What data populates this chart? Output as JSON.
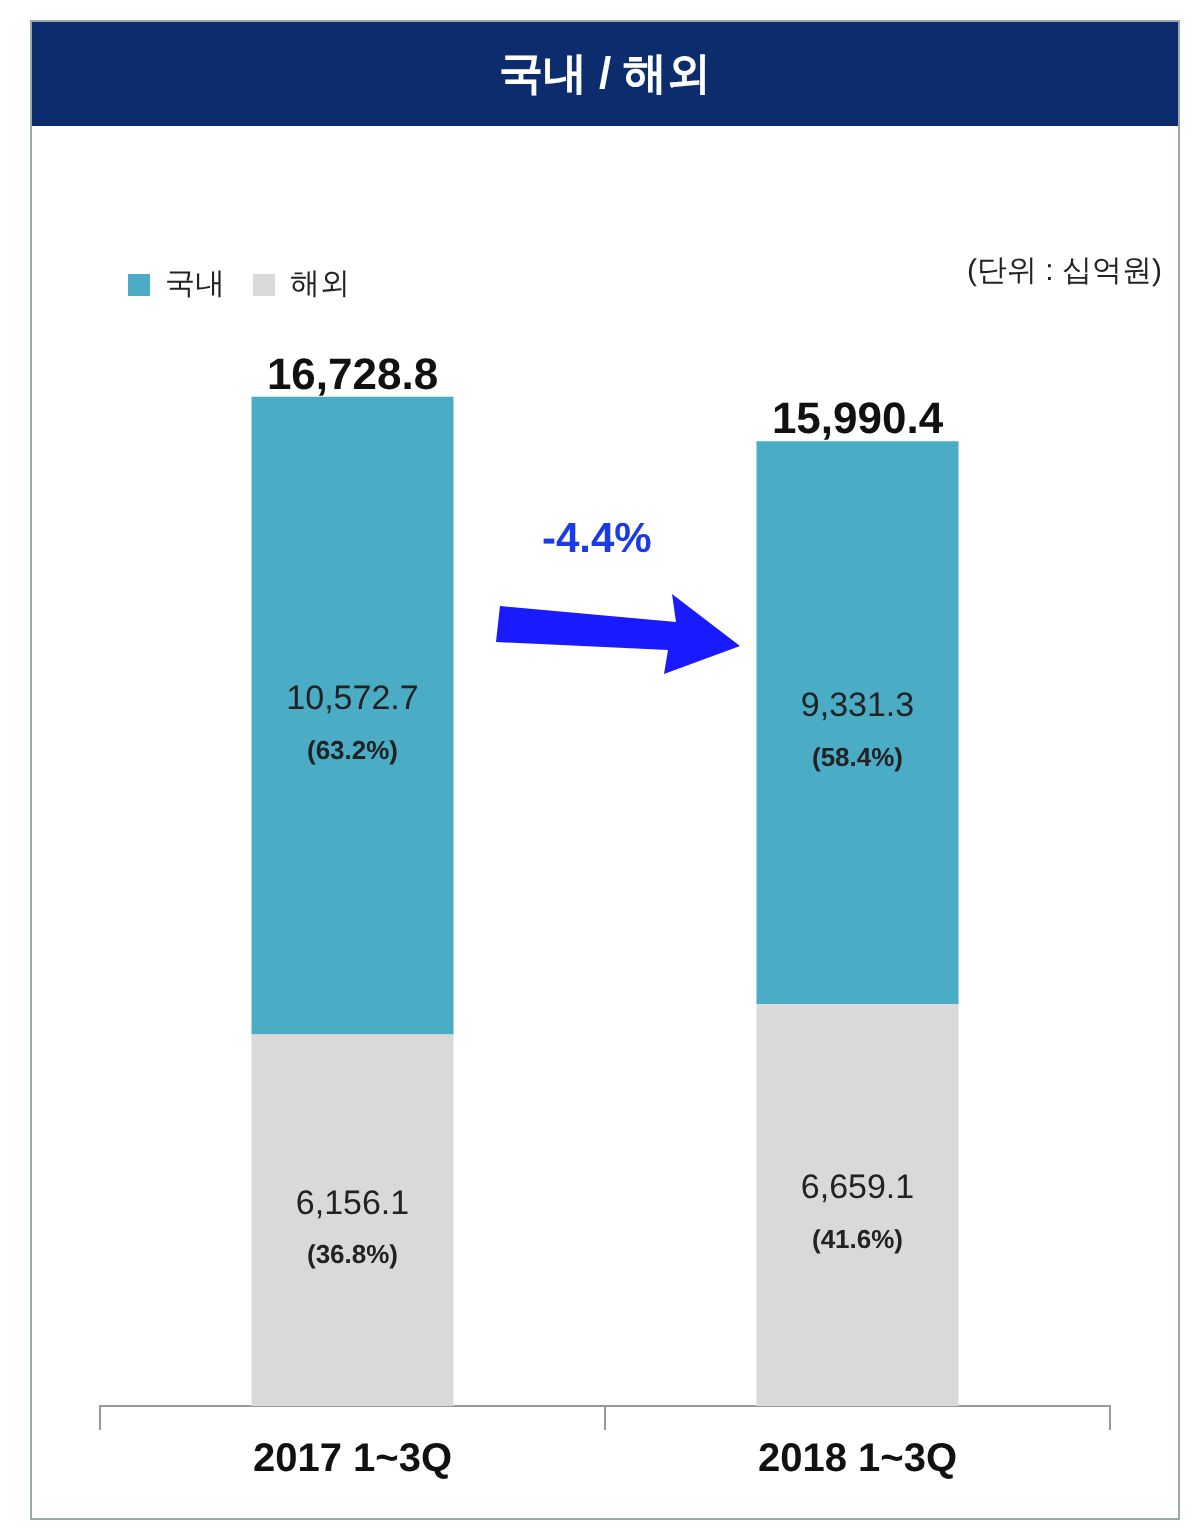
{
  "chart_data": {
    "type": "bar",
    "title": "국내 / 해외",
    "stacked": true,
    "legend": "top left",
    "categories": [
      "2017 1~3Q",
      "2018 1~3Q"
    ],
    "series": [
      {
        "name": "해외",
        "color": "#d9d9d9",
        "values": [
          6156.1,
          6659.1
        ],
        "value_labels": [
          "6,156.1\n(36.8%)",
          "6,659.1\n(41.6%)"
        ]
      },
      {
        "name": "국내",
        "color": "#4bacc6",
        "values": [
          10572.7,
          9331.3
        ],
        "value_labels": [
          "10,572.7\n(63.2%)",
          "9,331.3\n(58.4%)"
        ]
      }
    ],
    "totals": [
      "16,728.8",
      "15,990.4"
    ],
    "annotations": [
      "(단위 : 십억원)",
      "-4.4%"
    ]
  }
}
